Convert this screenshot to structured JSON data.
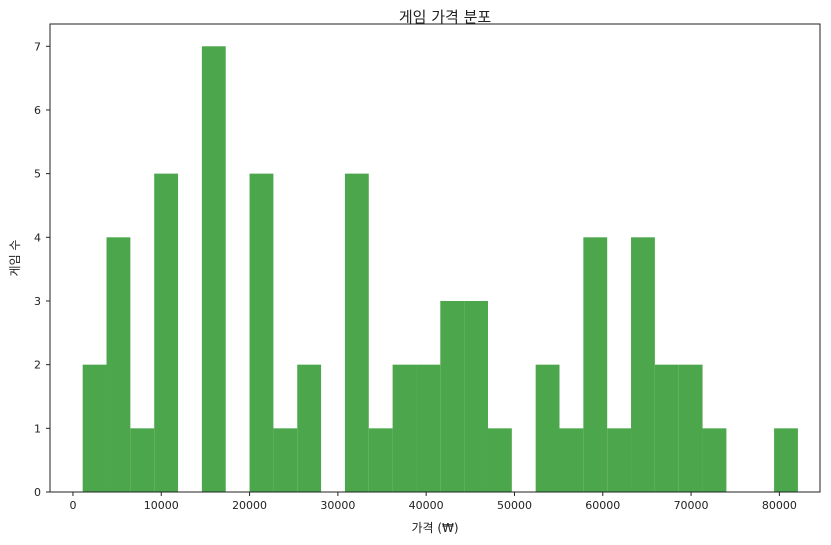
{
  "chart_data": {
    "type": "bar",
    "title": "게임 가격 분포",
    "xlabel": "가격 (₩)",
    "ylabel": "게임 수",
    "xlim": [
      -2600,
      84600
    ],
    "ylim": [
      0,
      7.35
    ],
    "bar_color": "#4ca64c",
    "x_ticks": [
      0,
      10000,
      20000,
      30000,
      40000,
      50000,
      60000,
      70000,
      80000
    ],
    "y_ticks": [
      0,
      1,
      2,
      3,
      4,
      5,
      6,
      7
    ],
    "bin_start": 1100,
    "bin_width": 2700,
    "counts": [
      2,
      4,
      1,
      5,
      0,
      7,
      0,
      5,
      1,
      2,
      0,
      5,
      1,
      2,
      2,
      3,
      3,
      1,
      0,
      2,
      1,
      4,
      1,
      4,
      2,
      2,
      1,
      0,
      0,
      1
    ],
    "grid": false,
    "legend": "none"
  }
}
